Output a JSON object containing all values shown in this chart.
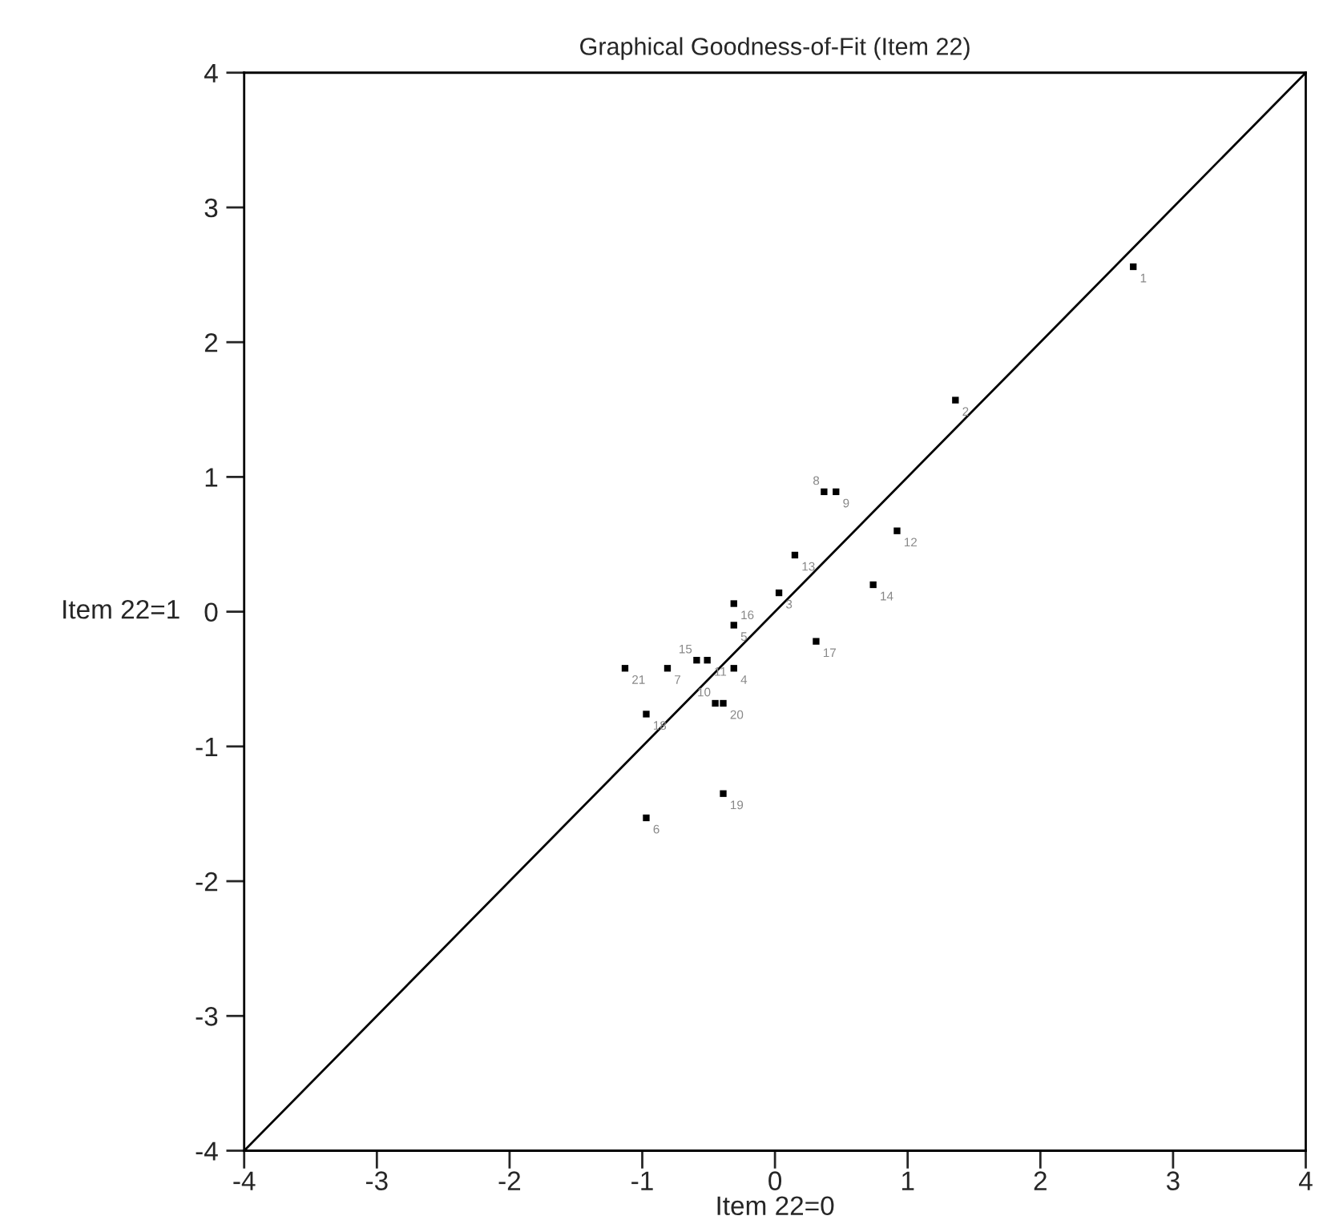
{
  "chart_data": {
    "type": "scatter",
    "title": "Graphical Goodness-of-Fit (Item 22)",
    "xlabel": "Item 22=0",
    "ylabel": "Item 22=1",
    "xlim": [
      -4,
      4
    ],
    "ylim": [
      -4,
      4
    ],
    "xticks": [
      -4,
      -3,
      -2,
      -1,
      0,
      1,
      2,
      3,
      4
    ],
    "yticks": [
      -4,
      -3,
      -2,
      -1,
      0,
      1,
      2,
      3,
      4
    ],
    "grid": false,
    "series": [
      {
        "marker": "square",
        "color": "#000000",
        "x": [
          2.7,
          1.36,
          0.03,
          -0.31,
          -0.31,
          -0.97,
          -0.81,
          0.37,
          0.46,
          -0.45,
          -0.51,
          0.92,
          0.15,
          0.74,
          -0.59,
          -0.31,
          0.31,
          -0.97,
          -0.39,
          -0.39,
          -1.13
        ],
        "values": [
          2.56,
          1.57,
          0.14,
          -0.42,
          -0.1,
          -1.53,
          -0.42,
          0.89,
          0.89,
          -0.68,
          -0.36,
          0.6,
          0.42,
          0.2,
          -0.36,
          0.06,
          -0.22,
          -0.76,
          -1.35,
          -0.68,
          -0.42
        ]
      },
      {
        "type": "line",
        "marker": "none",
        "color": "#000000",
        "x": [
          -4,
          4
        ],
        "values": [
          -4,
          4
        ]
      }
    ],
    "annotations": [
      {
        "text": "1",
        "x": 2.7,
        "y": 2.56
      },
      {
        "text": "2",
        "x": 1.36,
        "y": 1.57
      },
      {
        "text": "3",
        "x": 0.03,
        "y": 0.14
      },
      {
        "text": "4",
        "x": -0.31,
        "y": -0.42
      },
      {
        "text": "5",
        "x": -0.31,
        "y": -0.1
      },
      {
        "text": "6",
        "x": -0.97,
        "y": -1.53
      },
      {
        "text": "7",
        "x": -0.81,
        "y": -0.42
      },
      {
        "text": "8",
        "x": 0.37,
        "y": 0.89
      },
      {
        "text": "9",
        "x": 0.46,
        "y": 0.89
      },
      {
        "text": "10",
        "x": -0.45,
        "y": -0.68
      },
      {
        "text": "11",
        "x": -0.51,
        "y": -0.36
      },
      {
        "text": "12",
        "x": 0.92,
        "y": 0.6
      },
      {
        "text": "13",
        "x": 0.15,
        "y": 0.42
      },
      {
        "text": "14",
        "x": 0.74,
        "y": 0.2
      },
      {
        "text": "15",
        "x": -0.59,
        "y": -0.36
      },
      {
        "text": "16",
        "x": -0.31,
        "y": 0.06
      },
      {
        "text": "17",
        "x": 0.31,
        "y": -0.22
      },
      {
        "text": "18",
        "x": -0.97,
        "y": -0.76
      },
      {
        "text": "19",
        "x": -0.39,
        "y": -1.35
      },
      {
        "text": "20",
        "x": -0.39,
        "y": -0.68
      },
      {
        "text": "21",
        "x": -1.13,
        "y": -0.42
      }
    ]
  }
}
